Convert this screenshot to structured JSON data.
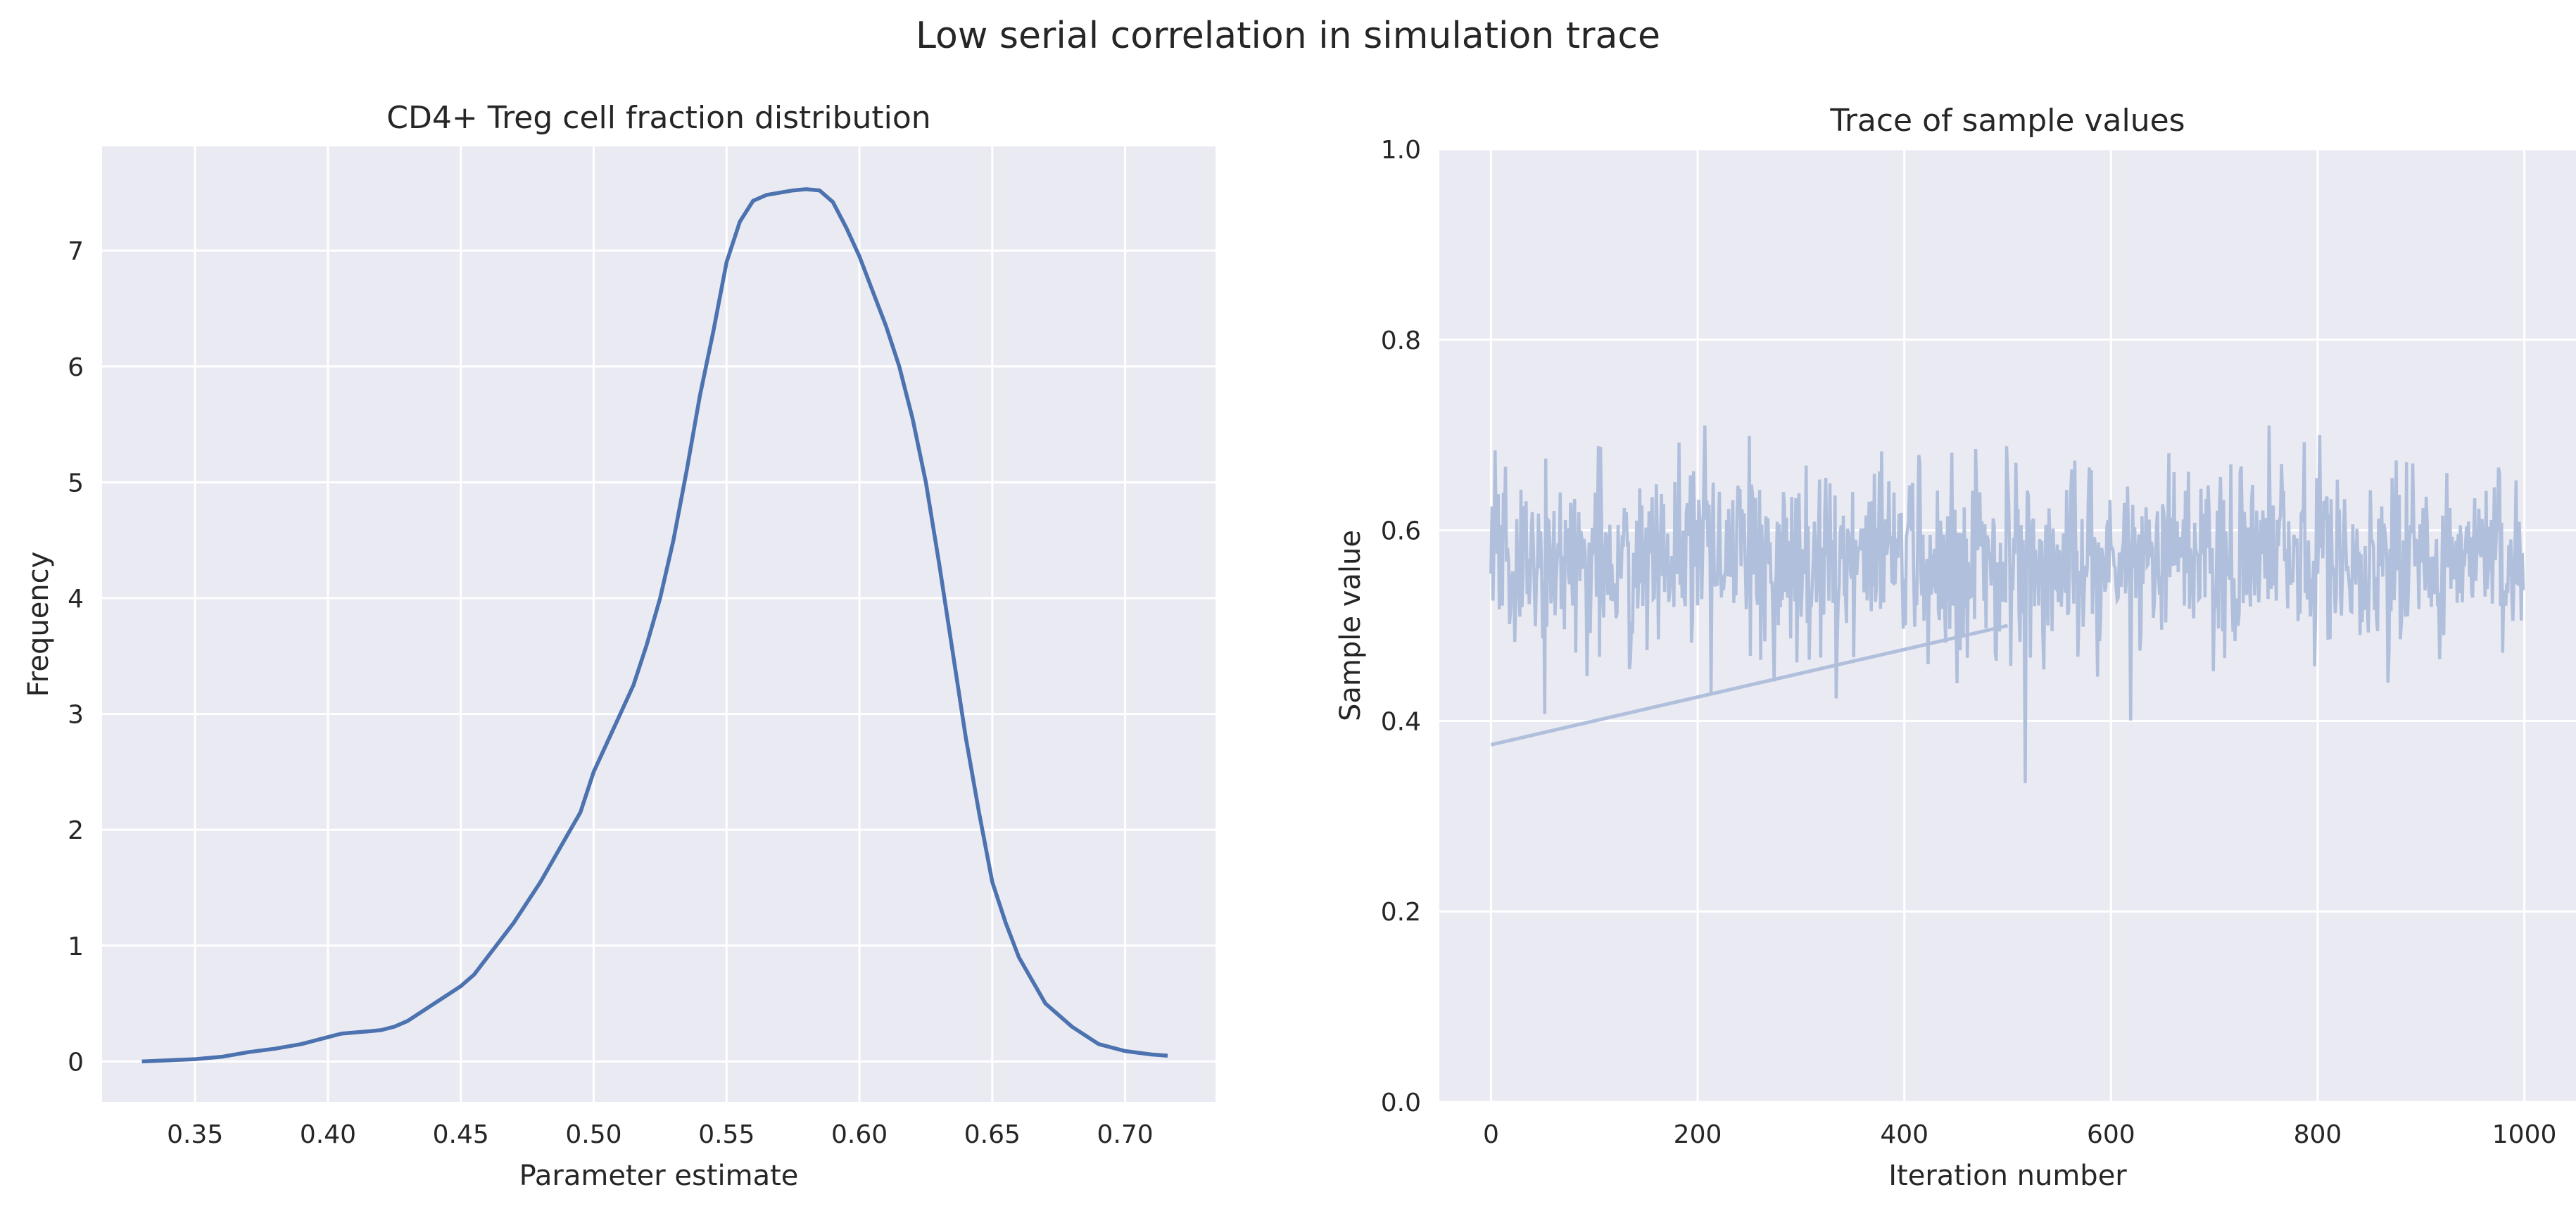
{
  "figure": {
    "suptitle": "Low serial correlation in simulation trace"
  },
  "colors": {
    "panel_background": "#eaeaf2",
    "grid": "#ffffff",
    "kde_line": "#4c72b0",
    "trace_line": "#b0bfdb",
    "text": "#262626"
  },
  "chart_data": [
    {
      "type": "line",
      "title": "CD4+ Treg cell fraction distribution",
      "xlabel": "Parameter estimate",
      "ylabel": "Frequency",
      "xlim": [
        0.315,
        0.734
      ],
      "ylim": [
        -0.35,
        7.9
      ],
      "xticks": [
        0.35,
        0.4,
        0.45,
        0.5,
        0.55,
        0.6,
        0.65,
        0.7
      ],
      "xtick_labels": [
        "0.35",
        "0.40",
        "0.45",
        "0.50",
        "0.55",
        "0.60",
        "0.65",
        "0.70"
      ],
      "yticks": [
        0,
        1,
        2,
        3,
        4,
        5,
        6,
        7
      ],
      "ytick_labels": [
        "0",
        "1",
        "2",
        "3",
        "4",
        "5",
        "6",
        "7"
      ],
      "grid": true,
      "series": [
        {
          "x": [
            0.33,
            0.34,
            0.35,
            0.36,
            0.37,
            0.38,
            0.39,
            0.4,
            0.405,
            0.41,
            0.415,
            0.42,
            0.425,
            0.43,
            0.44,
            0.45,
            0.455,
            0.46,
            0.47,
            0.48,
            0.49,
            0.495,
            0.5,
            0.505,
            0.51,
            0.515,
            0.52,
            0.525,
            0.53,
            0.535,
            0.54,
            0.545,
            0.55,
            0.555,
            0.56,
            0.565,
            0.57,
            0.575,
            0.58,
            0.585,
            0.59,
            0.595,
            0.6,
            0.605,
            0.61,
            0.615,
            0.62,
            0.625,
            0.63,
            0.635,
            0.64,
            0.645,
            0.65,
            0.655,
            0.66,
            0.665,
            0.67,
            0.68,
            0.69,
            0.7,
            0.71,
            0.716
          ],
          "y": [
            0.0,
            0.01,
            0.02,
            0.04,
            0.08,
            0.11,
            0.15,
            0.21,
            0.24,
            0.25,
            0.26,
            0.27,
            0.3,
            0.35,
            0.5,
            0.65,
            0.75,
            0.9,
            1.2,
            1.55,
            1.95,
            2.15,
            2.5,
            2.75,
            3.0,
            3.25,
            3.6,
            4.0,
            4.5,
            5.1,
            5.75,
            6.3,
            6.9,
            7.25,
            7.43,
            7.48,
            7.5,
            7.52,
            7.53,
            7.52,
            7.42,
            7.2,
            6.95,
            6.65,
            6.35,
            6.0,
            5.55,
            5.0,
            4.3,
            3.55,
            2.8,
            2.15,
            1.55,
            1.2,
            0.9,
            0.7,
            0.5,
            0.3,
            0.15,
            0.09,
            0.06,
            0.05
          ]
        }
      ]
    },
    {
      "type": "line",
      "title": "Trace of sample values",
      "xlabel": "Iteration number",
      "ylabel": "Sample value",
      "xlim": [
        -50,
        1050
      ],
      "ylim": [
        0.0,
        1.0
      ],
      "xticks": [
        0,
        200,
        400,
        600,
        800,
        1000
      ],
      "xtick_labels": [
        "0",
        "200",
        "400",
        "600",
        "800",
        "1000"
      ],
      "yticks": [
        0.0,
        0.2,
        0.4,
        0.6,
        0.8,
        1.0
      ],
      "ytick_labels": [
        "0.0",
        "0.2",
        "0.4",
        "0.6",
        "0.8",
        "1.0"
      ],
      "grid": true,
      "trace_summary": {
        "n_samples": 1000,
        "mean": 0.57,
        "std": 0.05,
        "min": 0.33,
        "max": 0.71
      },
      "series": [
        {
          "x": [
            0,
            100,
            200,
            300,
            400,
            500
          ],
          "y": [
            0.375,
            0.4,
            0.425,
            0.45,
            0.475,
            0.5
          ],
          "segment": "burn-in line"
        }
      ]
    }
  ]
}
